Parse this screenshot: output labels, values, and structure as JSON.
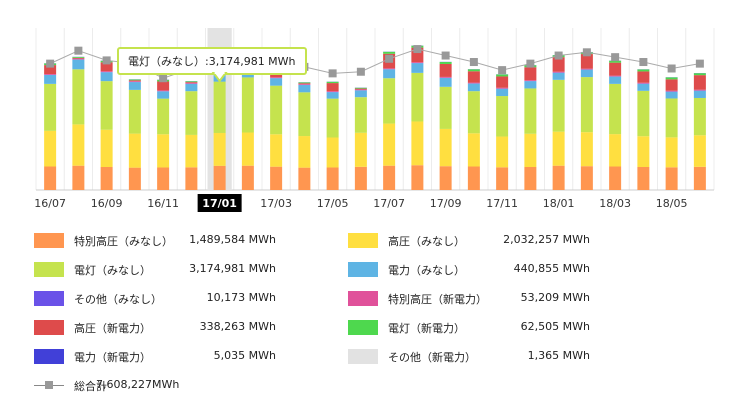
{
  "chart_data": {
    "type": "bar",
    "stacked": true,
    "categories": [
      "16/07",
      "16/08",
      "16/09",
      "16/10",
      "16/11",
      "16/12",
      "17/01",
      "17/02",
      "17/03",
      "17/04",
      "17/05",
      "17/06",
      "17/07",
      "17/08",
      "17/09",
      "17/10",
      "17/11",
      "17/12",
      "18/01",
      "18/02",
      "18/03",
      "18/04",
      "18/05",
      "18/06"
    ],
    "x_tick_labels": [
      "16/07",
      "16/09",
      "16/11",
      "17/01",
      "17/03",
      "17/05",
      "17/07",
      "17/09",
      "17/11",
      "18/01",
      "18/03",
      "18/05"
    ],
    "highlighted_category": "17/01",
    "series": [
      {
        "name": "特別高圧（みなし）",
        "color": "#ff9650",
        "values": [
          1.45,
          1.5,
          1.42,
          1.38,
          1.39,
          1.4,
          1.49,
          1.5,
          1.44,
          1.38,
          1.39,
          1.43,
          1.5,
          1.53,
          1.47,
          1.45,
          1.4,
          1.42,
          1.5,
          1.47,
          1.45,
          1.42,
          1.4,
          1.43
        ]
      },
      {
        "name": "高圧（みなし）",
        "color": "#ffdf40",
        "values": [
          2.2,
          2.55,
          2.3,
          2.1,
          2.05,
          2.0,
          2.03,
          2.05,
          2.0,
          1.95,
          1.85,
          2.1,
          2.6,
          2.7,
          2.3,
          2.05,
          1.9,
          2.05,
          2.1,
          2.1,
          2.0,
          1.9,
          1.85,
          1.95
        ]
      },
      {
        "name": "電灯（みなし）",
        "color": "#c5e34e",
        "values": [
          2.9,
          3.4,
          3.0,
          2.7,
          2.2,
          2.7,
          3.17,
          3.4,
          3.0,
          2.7,
          2.4,
          2.2,
          2.8,
          3.0,
          2.6,
          2.6,
          2.5,
          2.8,
          3.2,
          3.4,
          3.1,
          2.8,
          2.4,
          2.3
        ]
      },
      {
        "name": "電力（みなし）",
        "color": "#5eb4e4",
        "values": [
          0.55,
          0.6,
          0.55,
          0.48,
          0.45,
          0.45,
          0.44,
          0.46,
          0.46,
          0.45,
          0.4,
          0.42,
          0.55,
          0.6,
          0.55,
          0.47,
          0.45,
          0.45,
          0.44,
          0.46,
          0.45,
          0.44,
          0.42,
          0.45
        ]
      },
      {
        "name": "その他（みなし）",
        "color": "#6a52e8",
        "values": [
          0.01,
          0.01,
          0.01,
          0.01,
          0.01,
          0.01,
          0.01,
          0.01,
          0.01,
          0.01,
          0.01,
          0.01,
          0.01,
          0.01,
          0.01,
          0.01,
          0.01,
          0.01,
          0.01,
          0.01,
          0.01,
          0.01,
          0.01,
          0.01
        ]
      },
      {
        "name": "特別高圧（新電力）",
        "color": "#e0519a",
        "values": [
          0.05,
          0.05,
          0.05,
          0.05,
          0.05,
          0.05,
          0.05,
          0.05,
          0.05,
          0.05,
          0.05,
          0.05,
          0.05,
          0.05,
          0.05,
          0.05,
          0.05,
          0.05,
          0.05,
          0.05,
          0.05,
          0.05,
          0.05,
          0.05
        ]
      },
      {
        "name": "高圧（新電力）",
        "color": "#de4b4b",
        "values": [
          0.55,
          0.05,
          0.55,
          0.05,
          0.55,
          0.05,
          0.34,
          0.05,
          0.4,
          0.05,
          0.5,
          0.05,
          0.9,
          0.9,
          0.8,
          0.7,
          0.7,
          0.8,
          0.9,
          0.9,
          0.8,
          0.7,
          0.7,
          0.9
        ]
      },
      {
        "name": "電灯（新電力）",
        "color": "#4ed84e",
        "values": [
          0.1,
          0.05,
          0.1,
          0.05,
          0.1,
          0.05,
          0.06,
          0.05,
          0.08,
          0.05,
          0.08,
          0.05,
          0.12,
          0.12,
          0.12,
          0.12,
          0.12,
          0.12,
          0.12,
          0.12,
          0.12,
          0.12,
          0.12,
          0.12
        ]
      },
      {
        "name": "電力（新電力）",
        "color": "#4140d8",
        "values": [
          0.01,
          0.01,
          0.01,
          0.01,
          0.01,
          0.01,
          0.01,
          0.01,
          0.01,
          0.01,
          0.01,
          0.01,
          0.01,
          0.01,
          0.01,
          0.01,
          0.01,
          0.01,
          0.01,
          0.01,
          0.01,
          0.01,
          0.01,
          0.01
        ]
      },
      {
        "name": "その他（新電力）",
        "color": "#e2e2e2",
        "values": [
          0.0,
          0.0,
          0.0,
          0.0,
          0.0,
          0.0,
          0.0,
          0.0,
          0.0,
          0.0,
          0.0,
          0.0,
          0.0,
          0.0,
          0.0,
          0.0,
          0.0,
          0.0,
          0.0,
          0.0,
          0.0,
          0.0,
          0.0,
          0.0
        ]
      }
    ],
    "total_line": {
      "name": "総合計",
      "color": "#999999",
      "values": [
        7.8,
        8.6,
        8.0,
        7.8,
        6.9,
        7.5,
        7.6,
        8.3,
        8.1,
        7.6,
        7.2,
        7.3,
        8.1,
        8.7,
        8.3,
        7.9,
        7.4,
        7.8,
        8.3,
        8.5,
        8.2,
        7.9,
        7.5,
        7.8
      ]
    },
    "ylim": [
      0,
      10
    ],
    "grid": true,
    "legend_position": "bottom",
    "tooltip": {
      "series": "電灯（みなし）",
      "text": "電灯（みなし）:3,174,981 MWh"
    }
  },
  "legend": {
    "items": [
      {
        "name": "特別高圧（みなし）",
        "value": "1,489,584 MWh",
        "color": "#ff9650"
      },
      {
        "name": "高圧（みなし）",
        "value": "2,032,257 MWh",
        "color": "#ffdf40"
      },
      {
        "name": "電灯（みなし）",
        "value": "3,174,981 MWh",
        "color": "#c5e34e"
      },
      {
        "name": "電力（みなし）",
        "value": "440,855 MWh",
        "color": "#5eb4e4"
      },
      {
        "name": "その他（みなし）",
        "value": "10,173 MWh",
        "color": "#6a52e8"
      },
      {
        "name": "特別高圧（新電力）",
        "value": "53,209 MWh",
        "color": "#e0519a"
      },
      {
        "name": "高圧（新電力）",
        "value": "338,263 MWh",
        "color": "#de4b4b"
      },
      {
        "name": "電灯（新電力）",
        "value": "62,505 MWh",
        "color": "#4ed84e"
      },
      {
        "name": "電力（新電力）",
        "value": "5,035 MWh",
        "color": "#4140d8"
      },
      {
        "name": "その他（新電力）",
        "value": "1,365 MWh",
        "color": "#e2e2e2"
      }
    ],
    "total": {
      "name": "総合計",
      "value": "7,608,227MWh"
    }
  }
}
